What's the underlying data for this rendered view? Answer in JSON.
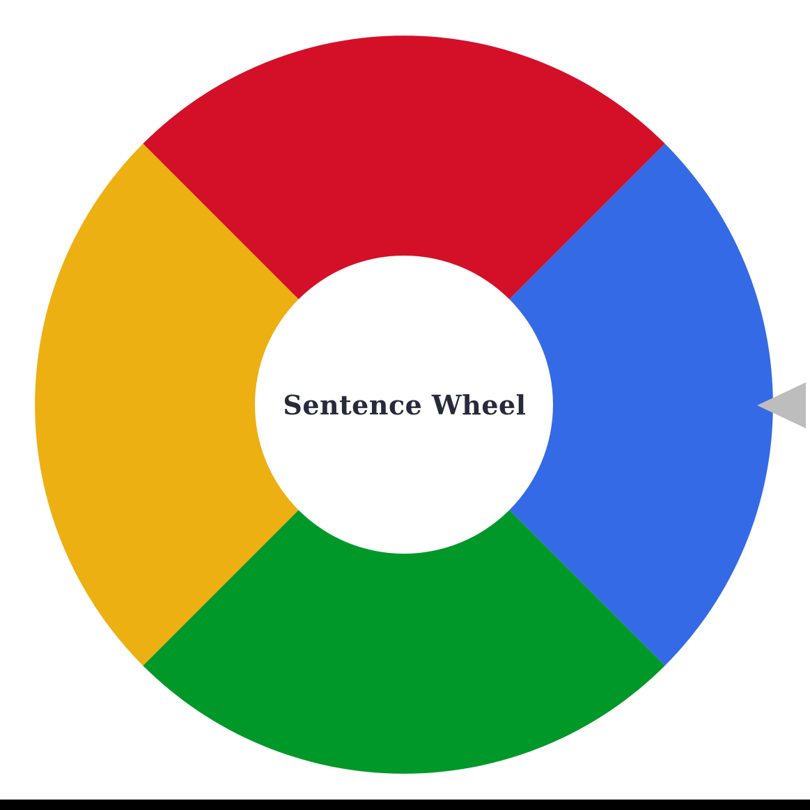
{
  "wheel": {
    "title": "Sentence Wheel",
    "segments": [
      {
        "name": "top",
        "color": "#d41028"
      },
      {
        "name": "right",
        "color": "#356ae6"
      },
      {
        "name": "bottom",
        "color": "#009829"
      },
      {
        "name": "left",
        "color": "#ecb013"
      }
    ],
    "hub_color": "#ffffff",
    "pointer_color": "#bdbdbd"
  }
}
